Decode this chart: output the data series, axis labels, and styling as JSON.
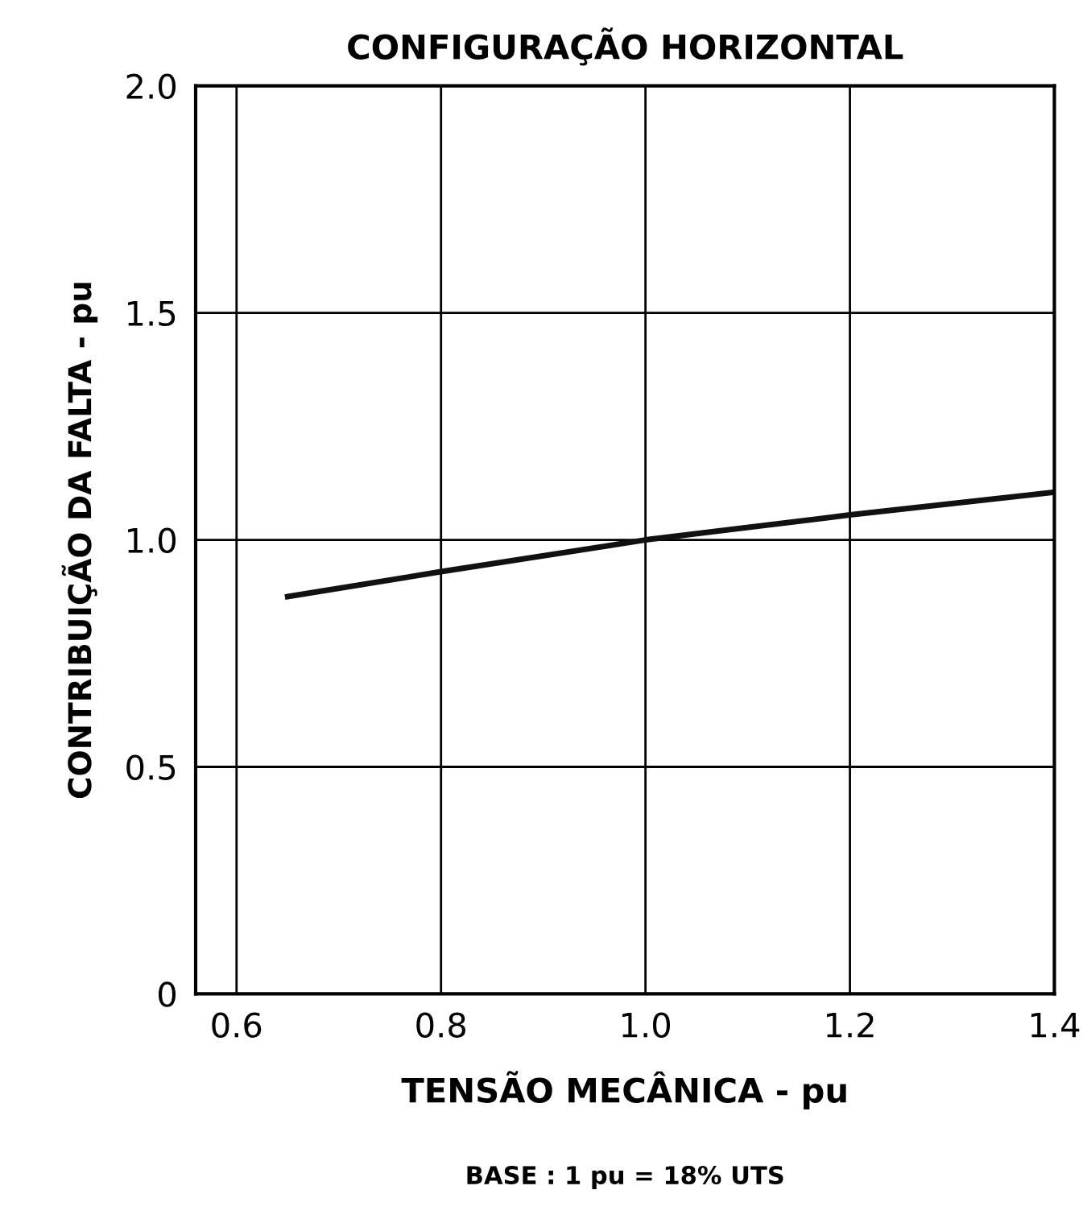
{
  "chart_data": {
    "type": "line",
    "title": "CONFIGURAÇÃO HORIZONTAL",
    "xlabel": "TENSÃO MECÂNICA - pu",
    "ylabel": "CONTRIBUIÇÃO DA FALTA - pu",
    "annotations": [
      "BASE : 1 pu = 18% UTS"
    ],
    "x": [
      0.65,
      0.8,
      1.0,
      1.2,
      1.4
    ],
    "series": [
      {
        "color": "#111111",
        "values": [
          0.875,
          0.93,
          1.0,
          1.055,
          1.105
        ]
      }
    ],
    "xlim": [
      0.56,
      1.4
    ],
    "ylim": [
      0,
      2.0
    ],
    "xticks": [
      0.6,
      0.8,
      {
        "value": 1.0,
        "label": "1.0"
      },
      1.2,
      1.4
    ],
    "yticks": [
      0,
      0.5,
      {
        "value": 1.0,
        "label": "1.0"
      },
      1.5,
      {
        "value": 2.0,
        "label": "2.0"
      }
    ],
    "grid": true,
    "marker": "none",
    "line_style": "solid"
  }
}
